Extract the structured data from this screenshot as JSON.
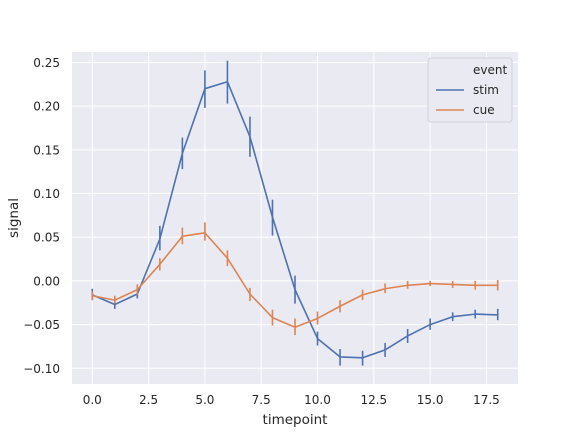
{
  "chart_data": {
    "type": "line",
    "title": "",
    "xlabel": "timepoint",
    "ylabel": "signal",
    "xlim": [
      -0.9,
      18.9
    ],
    "ylim": [
      -0.118,
      0.262
    ],
    "x_ticks": [
      0.0,
      2.5,
      5.0,
      7.5,
      10.0,
      12.5,
      15.0,
      17.5
    ],
    "x_tick_labels": [
      "0.0",
      "2.5",
      "5.0",
      "7.5",
      "10.0",
      "12.5",
      "15.0",
      "17.5"
    ],
    "y_ticks": [
      -0.1,
      -0.05,
      0.0,
      0.05,
      0.1,
      0.15,
      0.2,
      0.25
    ],
    "y_tick_labels": [
      "−0.10",
      "−0.05",
      "0.00",
      "0.05",
      "0.10",
      "0.15",
      "0.20",
      "0.25"
    ],
    "grid": true,
    "background": "#eaeaf2",
    "legend": {
      "title": "event",
      "placement": "upper-right",
      "entries": [
        "stim",
        "cue"
      ]
    },
    "x": [
      0,
      1,
      2,
      3,
      4,
      5,
      6,
      7,
      8,
      9,
      10,
      11,
      12,
      13,
      14,
      15,
      16,
      17,
      18
    ],
    "series": [
      {
        "name": "stim",
        "color": "#4c72b0",
        "values": [
          -0.016,
          -0.027,
          -0.015,
          0.048,
          0.146,
          0.22,
          0.228,
          0.165,
          0.073,
          -0.01,
          -0.066,
          -0.087,
          -0.088,
          -0.079,
          -0.063,
          -0.05,
          -0.041,
          -0.038,
          -0.039
        ],
        "error_low": [
          -0.022,
          -0.032,
          -0.02,
          0.035,
          0.128,
          0.198,
          0.203,
          0.142,
          0.052,
          -0.026,
          -0.074,
          -0.097,
          -0.097,
          -0.087,
          -0.071,
          -0.056,
          -0.046,
          -0.043,
          -0.045
        ],
        "error_high": [
          -0.009,
          -0.022,
          -0.009,
          0.063,
          0.164,
          0.241,
          0.252,
          0.188,
          0.093,
          0.006,
          -0.058,
          -0.078,
          -0.08,
          -0.071,
          -0.055,
          -0.043,
          -0.036,
          -0.033,
          -0.032
        ]
      },
      {
        "name": "cue",
        "color": "#dd8452",
        "values": [
          -0.017,
          -0.022,
          -0.01,
          0.019,
          0.051,
          0.055,
          0.026,
          -0.015,
          -0.042,
          -0.053,
          -0.043,
          -0.029,
          -0.016,
          -0.009,
          -0.005,
          -0.003,
          -0.004,
          -0.005,
          -0.005
        ],
        "error_low": [
          -0.022,
          -0.026,
          -0.016,
          0.012,
          0.042,
          0.046,
          0.017,
          -0.023,
          -0.051,
          -0.062,
          -0.05,
          -0.036,
          -0.022,
          -0.014,
          -0.009,
          -0.006,
          -0.008,
          -0.01,
          -0.011
        ],
        "error_high": [
          -0.012,
          -0.017,
          -0.004,
          0.026,
          0.061,
          0.067,
          0.035,
          -0.008,
          -0.033,
          -0.043,
          -0.035,
          -0.022,
          -0.01,
          -0.003,
          0.0,
          0.0,
          0.0,
          0.0,
          0.001
        ]
      }
    ]
  }
}
